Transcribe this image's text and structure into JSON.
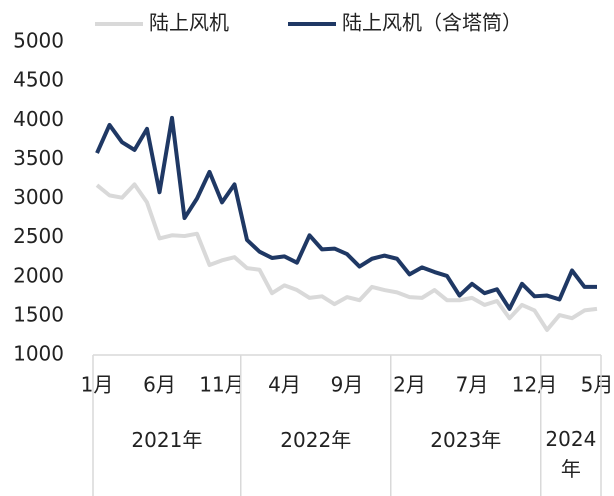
{
  "chart_data": {
    "type": "line",
    "categories": [
      "1月",
      null,
      null,
      null,
      null,
      "6月",
      null,
      null,
      null,
      null,
      "11月",
      null,
      null,
      null,
      null,
      "4月",
      null,
      null,
      null,
      null,
      "9月",
      null,
      null,
      null,
      null,
      "2月",
      null,
      null,
      null,
      null,
      "7月",
      null,
      null,
      null,
      null,
      "12月",
      null,
      null,
      null,
      null,
      "5月"
    ],
    "x_groups": [
      "2021年",
      "2022年",
      "2023年",
      "2024年"
    ],
    "series": [
      {
        "name": "陆上风机",
        "color": "#d9d9d9",
        "values": [
          3170,
          3040,
          3010,
          3180,
          2950,
          2490,
          2530,
          2520,
          2550,
          2150,
          2210,
          2250,
          2110,
          2090,
          1790,
          1890,
          1830,
          1730,
          1750,
          1650,
          1740,
          1700,
          1870,
          1830,
          1800,
          1740,
          1730,
          1830,
          1700,
          1700,
          1730,
          1640,
          1690,
          1470,
          1640,
          1570,
          1320,
          1510,
          1470,
          1570,
          1590
        ]
      },
      {
        "name": "陆上风机（含塔筒）",
        "color": "#1f3864",
        "values": [
          3580,
          3940,
          3720,
          3620,
          3890,
          3080,
          4030,
          2750,
          3000,
          3340,
          2950,
          3180,
          2470,
          2320,
          2240,
          2260,
          2180,
          2530,
          2350,
          2360,
          2290,
          2130,
          2230,
          2270,
          2230,
          2030,
          2120,
          2060,
          2010,
          1760,
          1910,
          1790,
          1840,
          1590,
          1910,
          1750,
          1760,
          1710,
          2080,
          1870,
          1870
        ]
      }
    ],
    "ylim": [
      1000,
      5000
    ],
    "yticks": [
      1000,
      1500,
      2000,
      2500,
      3000,
      3500,
      4000,
      4500,
      5000
    ],
    "legend": "top"
  }
}
